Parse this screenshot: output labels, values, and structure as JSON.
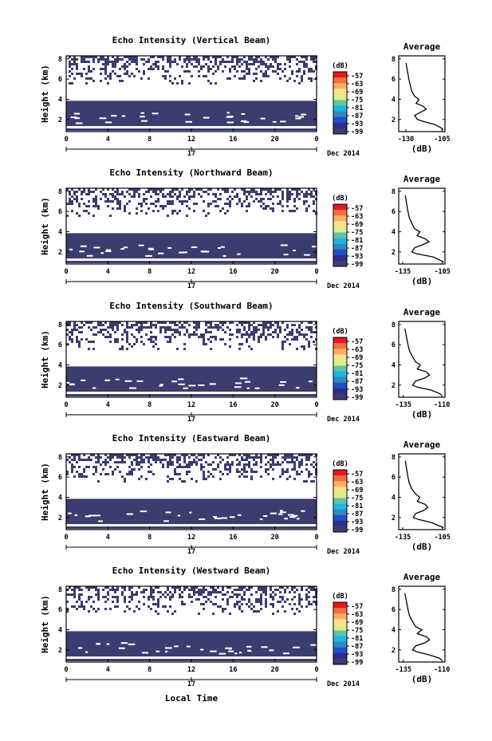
{
  "figure": {
    "date_label": "Dec 2014",
    "day_label": "17",
    "xlabel": "Local Time",
    "colors": [
      "#e31a1c",
      "#f46d43",
      "#fdae61",
      "#fee08b",
      "#d9ef8b",
      "#66c2a5",
      "#1ab7e6",
      "#3288bd",
      "#2050c8",
      "#2c2f8c",
      "#3a3d6e"
    ],
    "fill_color": "#3a3d6e"
  },
  "chart_data": [
    {
      "type": "heatmap",
      "title": "Echo Intensity (Vertical Beam)",
      "ylabel": "Height (km)",
      "x_ticks": [
        "0",
        "4",
        "8",
        "12",
        "16",
        "20",
        "0"
      ],
      "xlim": [
        0,
        24
      ],
      "y_ticks": [
        "2",
        "4",
        "6",
        "8"
      ],
      "ylim": [
        0.8,
        8.3
      ],
      "colorbar": {
        "unit": "(dB)",
        "labels": [
          "-57",
          "-63",
          "-69",
          "-75",
          "-81",
          "-87",
          "-93",
          "-99"
        ]
      },
      "solid_band_km": [
        1.35,
        3.85
      ],
      "average_profile": {
        "title": "Average",
        "xlabel": "(dB)",
        "x_ticks": [
          "-130",
          "-105"
        ],
        "y_ticks": [
          "2",
          "4",
          "6",
          "8"
        ],
        "xlim": [
          -135,
          -103
        ],
        "ylim": [
          0.8,
          8.3
        ],
        "x": [
          -104,
          -106,
          -110,
          -118,
          -122,
          -124,
          -120,
          -116,
          -118,
          -123,
          -121,
          -124,
          -126,
          -127,
          -128,
          -129,
          -130
        ],
        "y": [
          1.0,
          1.2,
          1.5,
          1.8,
          2.0,
          2.4,
          2.7,
          3.0,
          3.3,
          3.6,
          4.0,
          4.3,
          4.8,
          5.4,
          6.0,
          6.8,
          7.6
        ]
      }
    },
    {
      "type": "heatmap",
      "title": "Echo Intensity (Northward Beam)",
      "ylabel": "Height (km)",
      "x_ticks": [
        "0",
        "4",
        "8",
        "12",
        "16",
        "20",
        "0"
      ],
      "xlim": [
        0,
        24
      ],
      "y_ticks": [
        "2",
        "4",
        "6",
        "8"
      ],
      "ylim": [
        0.8,
        8.3
      ],
      "colorbar": {
        "unit": "(dB)",
        "labels": [
          "-57",
          "-63",
          "-69",
          "-75",
          "-81",
          "-87",
          "-93",
          "-99"
        ]
      },
      "solid_band_km": [
        1.35,
        3.85
      ],
      "average_profile": {
        "title": "Average",
        "xlabel": "(dB)",
        "x_ticks": [
          "-135",
          "-105"
        ],
        "y_ticks": [
          "2",
          "4",
          "6",
          "8"
        ],
        "xlim": [
          -138,
          -103
        ],
        "ylim": [
          0.8,
          8.3
        ],
        "x": [
          -104,
          -107,
          -112,
          -124,
          -128,
          -126,
          -120,
          -115,
          -118,
          -124,
          -122,
          -126,
          -128,
          -130,
          -131,
          -132,
          -133
        ],
        "y": [
          1.0,
          1.2,
          1.5,
          1.8,
          2.0,
          2.4,
          2.7,
          3.0,
          3.3,
          3.6,
          4.0,
          4.3,
          4.8,
          5.4,
          6.0,
          6.8,
          7.6
        ]
      }
    },
    {
      "type": "heatmap",
      "title": "Echo Intensity (Southward Beam)",
      "ylabel": "Height (km)",
      "x_ticks": [
        "0",
        "4",
        "8",
        "12",
        "16",
        "20",
        "0"
      ],
      "xlim": [
        0,
        24
      ],
      "y_ticks": [
        "2",
        "4",
        "6",
        "8"
      ],
      "ylim": [
        0.8,
        8.3
      ],
      "colorbar": {
        "unit": "(dB)",
        "labels": [
          "-57",
          "-63",
          "-69",
          "-75",
          "-81",
          "-87",
          "-93",
          "-99"
        ]
      },
      "solid_band_km": [
        1.35,
        3.85
      ],
      "average_profile": {
        "title": "Average",
        "xlabel": "(dB)",
        "x_ticks": [
          "-135",
          "-110"
        ],
        "y_ticks": [
          "2",
          "4",
          "6",
          "8"
        ],
        "xlim": [
          -138,
          -108
        ],
        "ylim": [
          0.8,
          8.3
        ],
        "x": [
          -110,
          -112,
          -117,
          -126,
          -129,
          -127,
          -121,
          -118,
          -120,
          -126,
          -124,
          -127,
          -129,
          -131,
          -132,
          -133,
          -134
        ],
        "y": [
          1.0,
          1.2,
          1.5,
          1.8,
          2.0,
          2.4,
          2.7,
          3.0,
          3.3,
          3.6,
          4.0,
          4.3,
          4.8,
          5.4,
          6.0,
          6.8,
          7.6
        ]
      }
    },
    {
      "type": "heatmap",
      "title": "Echo Intensity (Eastward Beam)",
      "ylabel": "Height (km)",
      "x_ticks": [
        "0",
        "4",
        "8",
        "12",
        "16",
        "20",
        "0"
      ],
      "xlim": [
        0,
        24
      ],
      "y_ticks": [
        "2",
        "4",
        "6",
        "8"
      ],
      "ylim": [
        0.8,
        8.3
      ],
      "colorbar": {
        "unit": "(dB)",
        "labels": [
          "-57",
          "-63",
          "-69",
          "-75",
          "-81",
          "-87",
          "-93",
          "-99"
        ]
      },
      "solid_band_km": [
        1.35,
        3.85
      ],
      "average_profile": {
        "title": "Average",
        "xlabel": "(dB)",
        "x_ticks": [
          "-135",
          "-105"
        ],
        "y_ticks": [
          "2",
          "4",
          "6",
          "8"
        ],
        "xlim": [
          -138,
          -103
        ],
        "ylim": [
          0.8,
          8.3
        ],
        "x": [
          -104,
          -108,
          -113,
          -123,
          -127,
          -125,
          -119,
          -116,
          -118,
          -124,
          -122,
          -125,
          -128,
          -130,
          -131,
          -132,
          -133
        ],
        "y": [
          1.0,
          1.2,
          1.5,
          1.8,
          2.0,
          2.4,
          2.7,
          3.0,
          3.3,
          3.6,
          4.0,
          4.3,
          4.8,
          5.4,
          6.0,
          6.8,
          7.6
        ]
      }
    },
    {
      "type": "heatmap",
      "title": "Echo Intensity (Westward Beam)",
      "ylabel": "Height (km)",
      "x_ticks": [
        "0",
        "4",
        "8",
        "12",
        "16",
        "20",
        "0"
      ],
      "xlim": [
        0,
        24
      ],
      "y_ticks": [
        "2",
        "4",
        "6",
        "8"
      ],
      "ylim": [
        0.8,
        8.3
      ],
      "colorbar": {
        "unit": "(dB)",
        "labels": [
          "-57",
          "-63",
          "-69",
          "-75",
          "-81",
          "-87",
          "-93",
          "-99"
        ]
      },
      "solid_band_km": [
        1.35,
        3.85
      ],
      "average_profile": {
        "title": "Average",
        "xlabel": "(dB)",
        "x_ticks": [
          "-135",
          "-110"
        ],
        "y_ticks": [
          "2",
          "4",
          "6",
          "8"
        ],
        "xlim": [
          -138,
          -108
        ],
        "ylim": [
          0.8,
          8.3
        ],
        "x": [
          -110,
          -112,
          -118,
          -126,
          -129,
          -127,
          -121,
          -118,
          -120,
          -126,
          -123,
          -127,
          -129,
          -131,
          -132,
          -133,
          -134
        ],
        "y": [
          1.0,
          1.2,
          1.5,
          1.8,
          2.0,
          2.4,
          2.7,
          3.0,
          3.3,
          3.6,
          4.0,
          4.3,
          4.8,
          5.4,
          6.0,
          6.8,
          7.6
        ]
      }
    }
  ]
}
